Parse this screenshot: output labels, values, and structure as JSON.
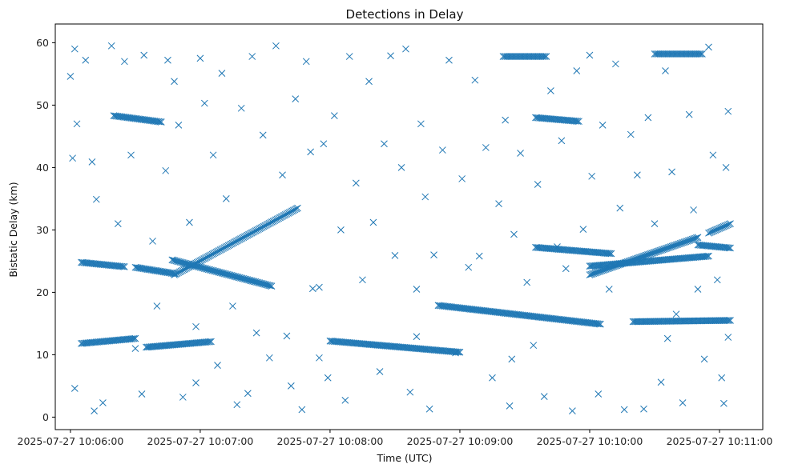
{
  "chart_data": {
    "type": "scatter",
    "title": "Detections in Delay",
    "xlabel": "Time (UTC)",
    "ylabel": "Bistatic Delay (km)",
    "x_axis_type": "datetime",
    "xlim": [
      "2025-07-27 10:05:53",
      "2025-07-27 10:11:20"
    ],
    "ylim": [
      -2,
      63
    ],
    "x_ticks": [
      "2025-07-27 10:06:00",
      "2025-07-27 10:07:00",
      "2025-07-27 10:08:00",
      "2025-07-27 10:09:00",
      "2025-07-27 10:10:00",
      "2025-07-27 10:11:00"
    ],
    "y_ticks": [
      "0",
      "10",
      "20",
      "30",
      "40",
      "50",
      "60"
    ],
    "y_tick_values": [
      0,
      10,
      20,
      30,
      40,
      50,
      60
    ],
    "marker": "x",
    "grid": false,
    "legend": "none",
    "color": "#1f77b4",
    "series": [
      {
        "tracks": [
          {
            "x": [
              "2025-07-27 10:06:05",
              "2025-07-27 10:06:25"
            ],
            "y": [
              24.8,
              24.1
            ]
          },
          {
            "x": [
              "2025-07-27 10:06:30",
              "2025-07-27 10:06:48"
            ],
            "y": [
              24.0,
              23.0
            ]
          },
          {
            "x": [
              "2025-07-27 10:06:48",
              "2025-07-27 10:07:45"
            ],
            "y": [
              22.8,
              33.5
            ]
          },
          {
            "x": [
              "2025-07-27 10:06:47",
              "2025-07-27 10:07:33"
            ],
            "y": [
              25.2,
              21.0
            ]
          },
          {
            "x": [
              "2025-07-27 10:06:05",
              "2025-07-27 10:06:30"
            ],
            "y": [
              11.8,
              12.6
            ]
          },
          {
            "x": [
              "2025-07-27 10:06:35",
              "2025-07-27 10:07:05"
            ],
            "y": [
              11.2,
              12.1
            ]
          },
          {
            "x": [
              "2025-07-27 10:08:00",
              "2025-07-27 10:09:00"
            ],
            "y": [
              12.2,
              10.4
            ]
          },
          {
            "x": [
              "2025-07-27 10:08:50",
              "2025-07-27 10:10:05"
            ],
            "y": [
              17.9,
              14.9
            ]
          },
          {
            "x": [
              "2025-07-27 10:09:35",
              "2025-07-27 10:10:10"
            ],
            "y": [
              27.2,
              26.2
            ]
          },
          {
            "x": [
              "2025-07-27 10:10:00",
              "2025-07-27 10:10:50"
            ],
            "y": [
              22.8,
              28.8
            ]
          },
          {
            "x": [
              "2025-07-27 10:10:00",
              "2025-07-27 10:10:55"
            ],
            "y": [
              24.2,
              25.8
            ]
          },
          {
            "x": [
              "2025-07-27 10:10:55",
              "2025-07-27 10:11:05"
            ],
            "y": [
              29.5,
              31.0
            ]
          },
          {
            "x": [
              "2025-07-27 10:10:50",
              "2025-07-27 10:11:05"
            ],
            "y": [
              27.6,
              27.1
            ]
          },
          {
            "x": [
              "2025-07-27 10:10:20",
              "2025-07-27 10:11:05"
            ],
            "y": [
              15.3,
              15.5
            ]
          },
          {
            "x": [
              "2025-07-27 10:06:20",
              "2025-07-27 10:06:42"
            ],
            "y": [
              48.3,
              47.3
            ]
          },
          {
            "x": [
              "2025-07-27 10:09:35",
              "2025-07-27 10:09:55"
            ],
            "y": [
              48.0,
              47.4
            ]
          },
          {
            "x": [
              "2025-07-27 10:09:20",
              "2025-07-27 10:09:40"
            ],
            "y": [
              57.8,
              57.8
            ]
          },
          {
            "x": [
              "2025-07-27 10:10:30",
              "2025-07-27 10:10:52"
            ],
            "y": [
              58.2,
              58.2
            ]
          }
        ],
        "points": [
          [
            "2025-07-27 10:06:00",
            54.6
          ],
          [
            "2025-07-27 10:06:02",
            59.0
          ],
          [
            "2025-07-27 10:06:07",
            57.2
          ],
          [
            "2025-07-27 10:06:10",
            40.9
          ],
          [
            "2025-07-27 10:06:03",
            47.0
          ],
          [
            "2025-07-27 10:06:01",
            41.5
          ],
          [
            "2025-07-27 10:06:02",
            4.6
          ],
          [
            "2025-07-27 10:06:11",
            1.0
          ],
          [
            "2025-07-27 10:06:15",
            2.3
          ],
          [
            "2025-07-27 10:06:12",
            34.9
          ],
          [
            "2025-07-27 10:06:19",
            59.5
          ],
          [
            "2025-07-27 10:06:25",
            57.0
          ],
          [
            "2025-07-27 10:06:22",
            31.0
          ],
          [
            "2025-07-27 10:06:28",
            42.0
          ],
          [
            "2025-07-27 10:06:34",
            58.0
          ],
          [
            "2025-07-27 10:06:33",
            3.7
          ],
          [
            "2025-07-27 10:06:30",
            11.0
          ],
          [
            "2025-07-27 10:06:38",
            28.2
          ],
          [
            "2025-07-27 10:06:40",
            17.8
          ],
          [
            "2025-07-27 10:06:45",
            57.2
          ],
          [
            "2025-07-27 10:06:44",
            39.5
          ],
          [
            "2025-07-27 10:06:48",
            53.8
          ],
          [
            "2025-07-27 10:06:50",
            46.8
          ],
          [
            "2025-07-27 10:06:52",
            3.2
          ],
          [
            "2025-07-27 10:06:55",
            31.2
          ],
          [
            "2025-07-27 10:06:58",
            14.5
          ],
          [
            "2025-07-27 10:07:00",
            57.5
          ],
          [
            "2025-07-27 10:07:02",
            50.3
          ],
          [
            "2025-07-27 10:07:06",
            42.0
          ],
          [
            "2025-07-27 10:07:08",
            8.3
          ],
          [
            "2025-07-27 10:07:10",
            55.1
          ],
          [
            "2025-07-27 10:07:12",
            35.0
          ],
          [
            "2025-07-27 10:07:15",
            17.8
          ],
          [
            "2025-07-27 10:07:17",
            2.0
          ],
          [
            "2025-07-27 10:07:19",
            49.5
          ],
          [
            "2025-07-27 10:07:22",
            3.8
          ],
          [
            "2025-07-27 10:07:24",
            57.8
          ],
          [
            "2025-07-27 10:07:26",
            13.5
          ],
          [
            "2025-07-27 10:07:29",
            45.2
          ],
          [
            "2025-07-27 10:07:32",
            9.5
          ],
          [
            "2025-07-27 10:07:35",
            59.5
          ],
          [
            "2025-07-27 10:07:38",
            38.8
          ],
          [
            "2025-07-27 10:07:40",
            13.0
          ],
          [
            "2025-07-27 10:07:42",
            5.0
          ],
          [
            "2025-07-27 10:07:44",
            51.0
          ],
          [
            "2025-07-27 10:07:47",
            1.2
          ],
          [
            "2025-07-27 10:07:49",
            57.0
          ],
          [
            "2025-07-27 10:07:51",
            42.5
          ],
          [
            "2025-07-27 10:07:52",
            20.6
          ],
          [
            "2025-07-27 10:07:55",
            20.8
          ],
          [
            "2025-07-27 10:07:57",
            43.8
          ],
          [
            "2025-07-27 10:07:59",
            6.3
          ],
          [
            "2025-07-27 10:08:02",
            48.3
          ],
          [
            "2025-07-27 10:08:05",
            30.0
          ],
          [
            "2025-07-27 10:08:07",
            2.7
          ],
          [
            "2025-07-27 10:08:09",
            57.8
          ],
          [
            "2025-07-27 10:08:12",
            37.5
          ],
          [
            "2025-07-27 10:08:15",
            22.0
          ],
          [
            "2025-07-27 10:08:18",
            53.8
          ],
          [
            "2025-07-27 10:08:20",
            31.2
          ],
          [
            "2025-07-27 10:08:23",
            7.3
          ],
          [
            "2025-07-27 10:08:25",
            43.8
          ],
          [
            "2025-07-27 10:08:28",
            57.9
          ],
          [
            "2025-07-27 10:08:30",
            25.9
          ],
          [
            "2025-07-27 10:08:33",
            40.0
          ],
          [
            "2025-07-27 10:08:35",
            59.0
          ],
          [
            "2025-07-27 10:08:37",
            4.0
          ],
          [
            "2025-07-27 10:08:40",
            20.5
          ],
          [
            "2025-07-27 10:08:42",
            47.0
          ],
          [
            "2025-07-27 10:08:44",
            35.3
          ],
          [
            "2025-07-27 10:08:46",
            1.3
          ],
          [
            "2025-07-27 10:08:48",
            26.0
          ],
          [
            "2025-07-27 10:08:52",
            42.8
          ],
          [
            "2025-07-27 10:08:55",
            57.2
          ],
          [
            "2025-07-27 10:08:58",
            10.3
          ],
          [
            "2025-07-27 10:09:01",
            38.2
          ],
          [
            "2025-07-27 10:09:04",
            24.0
          ],
          [
            "2025-07-27 10:09:07",
            54.0
          ],
          [
            "2025-07-27 10:09:09",
            25.8
          ],
          [
            "2025-07-27 10:09:12",
            43.2
          ],
          [
            "2025-07-27 10:09:15",
            6.3
          ],
          [
            "2025-07-27 10:09:18",
            34.2
          ],
          [
            "2025-07-27 10:09:21",
            47.6
          ],
          [
            "2025-07-27 10:09:23",
            1.8
          ],
          [
            "2025-07-27 10:09:25",
            29.3
          ],
          [
            "2025-07-27 10:09:28",
            42.3
          ],
          [
            "2025-07-27 10:09:31",
            21.6
          ],
          [
            "2025-07-27 10:09:34",
            11.5
          ],
          [
            "2025-07-27 10:09:36",
            37.3
          ],
          [
            "2025-07-27 10:09:39",
            3.3
          ],
          [
            "2025-07-27 10:09:42",
            52.3
          ],
          [
            "2025-07-27 10:09:45",
            27.3
          ],
          [
            "2025-07-27 10:09:47",
            44.3
          ],
          [
            "2025-07-27 10:09:49",
            23.8
          ],
          [
            "2025-07-27 10:09:52",
            1.0
          ],
          [
            "2025-07-27 10:09:54",
            55.5
          ],
          [
            "2025-07-27 10:09:57",
            30.1
          ],
          [
            "2025-07-27 10:10:00",
            58.0
          ],
          [
            "2025-07-27 10:10:01",
            38.6
          ],
          [
            "2025-07-27 10:10:04",
            3.7
          ],
          [
            "2025-07-27 10:10:06",
            46.8
          ],
          [
            "2025-07-27 10:10:09",
            20.5
          ],
          [
            "2025-07-27 10:10:12",
            56.6
          ],
          [
            "2025-07-27 10:10:14",
            33.5
          ],
          [
            "2025-07-27 10:10:16",
            1.2
          ],
          [
            "2025-07-27 10:10:19",
            45.3
          ],
          [
            "2025-07-27 10:10:22",
            38.8
          ],
          [
            "2025-07-27 10:10:25",
            1.3
          ],
          [
            "2025-07-27 10:10:27",
            48.0
          ],
          [
            "2025-07-27 10:10:30",
            31.0
          ],
          [
            "2025-07-27 10:10:33",
            5.6
          ],
          [
            "2025-07-27 10:10:35",
            55.5
          ],
          [
            "2025-07-27 10:10:38",
            39.3
          ],
          [
            "2025-07-27 10:10:40",
            16.5
          ],
          [
            "2025-07-27 10:10:43",
            2.3
          ],
          [
            "2025-07-27 10:10:46",
            48.5
          ],
          [
            "2025-07-27 10:10:48",
            33.2
          ],
          [
            "2025-07-27 10:10:50",
            20.5
          ],
          [
            "2025-07-27 10:10:53",
            9.3
          ],
          [
            "2025-07-27 10:10:55",
            59.3
          ],
          [
            "2025-07-27 10:10:57",
            42.0
          ],
          [
            "2025-07-27 10:10:59",
            22.0
          ],
          [
            "2025-07-27 10:11:01",
            6.3
          ],
          [
            "2025-07-27 10:11:02",
            2.2
          ],
          [
            "2025-07-27 10:11:03",
            40.0
          ],
          [
            "2025-07-27 10:11:04",
            49.0
          ],
          [
            "2025-07-27 10:11:04",
            12.8
          ],
          [
            "2025-07-27 10:06:58",
            5.5
          ],
          [
            "2025-07-27 10:07:55",
            9.5
          ],
          [
            "2025-07-27 10:08:40",
            12.9
          ],
          [
            "2025-07-27 10:09:24",
            9.3
          ],
          [
            "2025-07-27 10:10:36",
            12.6
          ]
        ]
      }
    ]
  }
}
